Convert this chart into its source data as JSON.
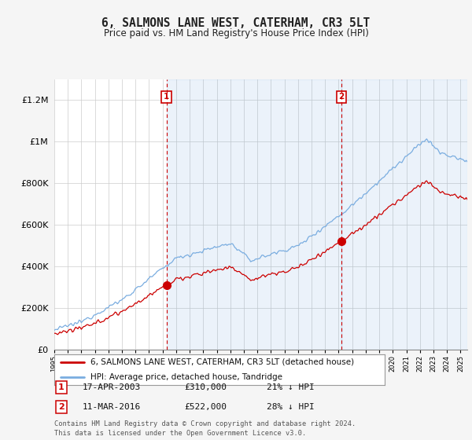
{
  "title": "6, SALMONS LANE WEST, CATERHAM, CR3 5LT",
  "subtitle": "Price paid vs. HM Land Registry's House Price Index (HPI)",
  "ylabel_ticks": [
    "£0",
    "£200K",
    "£400K",
    "£600K",
    "£800K",
    "£1M",
    "£1.2M"
  ],
  "ylim": [
    0,
    1300000
  ],
  "yticks": [
    0,
    200000,
    400000,
    600000,
    800000,
    1000000,
    1200000
  ],
  "sale1_date": "17-APR-2003",
  "sale1_price": 310000,
  "sale1_year": 2003.29,
  "sale1_pct": "21% ↓ HPI",
  "sale2_date": "11-MAR-2016",
  "sale2_price": 522000,
  "sale2_year": 2016.19,
  "sale2_pct": "28% ↓ HPI",
  "legend_line1": "6, SALMONS LANE WEST, CATERHAM, CR3 5LT (detached house)",
  "legend_line2": "HPI: Average price, detached house, Tandridge",
  "footnote": "Contains HM Land Registry data © Crown copyright and database right 2024.\nThis data is licensed under the Open Government Licence v3.0.",
  "hpi_color": "#7aade0",
  "hpi_fill_color": "#ddeeff",
  "sale_color": "#cc0000",
  "vline_color": "#cc0000",
  "plot_bg_color": "#ffffff",
  "fig_bg_color": "#f5f5f5",
  "grid_color": "#cccccc"
}
